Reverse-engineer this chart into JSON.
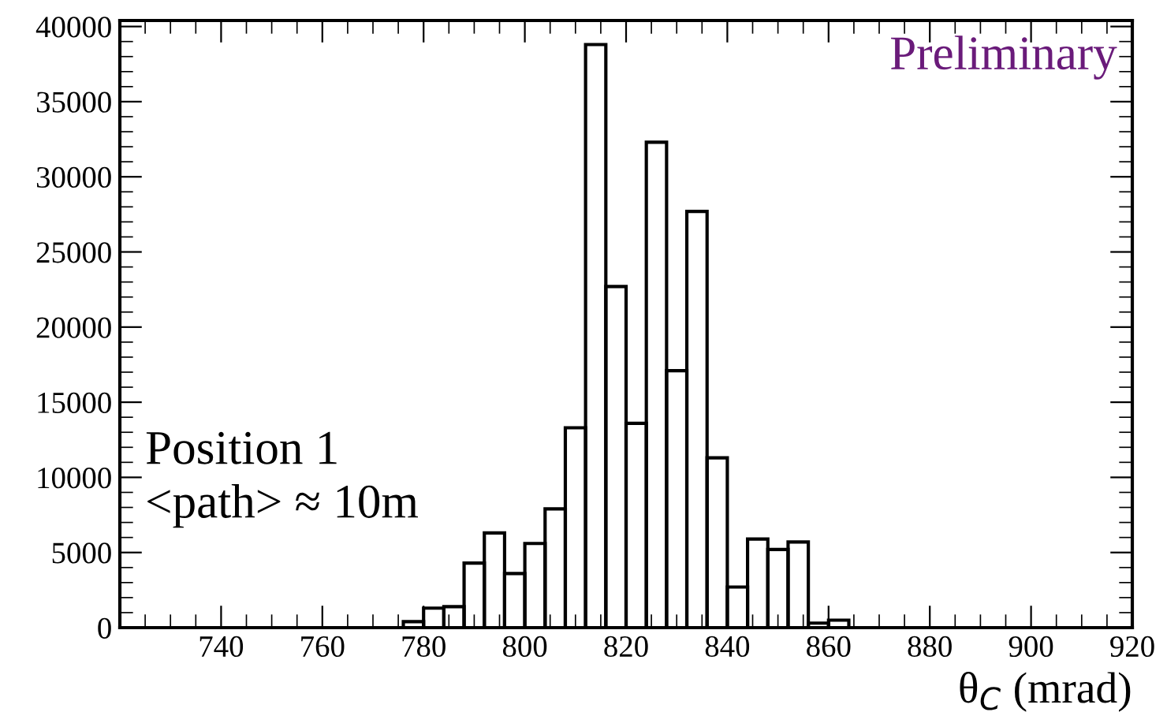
{
  "chart_data": {
    "type": "histogram",
    "bins": [
      776,
      780,
      784,
      788,
      792,
      796,
      800,
      804,
      808,
      812,
      816,
      820,
      824,
      828,
      832,
      836,
      840,
      844,
      848,
      852,
      856,
      860,
      864
    ],
    "values": [
      400,
      1300,
      1400,
      4300,
      6300,
      3600,
      5600,
      7900,
      13300,
      38800,
      22700,
      13600,
      32300,
      17100,
      27700,
      11300,
      2700,
      5900,
      5200,
      5700,
      300,
      500
    ],
    "color": "#000000",
    "xlabel": "θ$_{C}$ (mrad)",
    "xlim": [
      720,
      920
    ],
    "xticks": [
      740,
      760,
      780,
      800,
      820,
      840,
      860,
      880,
      900,
      920
    ],
    "ylim": [
      0,
      40400
    ],
    "yticks": [
      0,
      5000,
      10000,
      15000,
      20000,
      25000,
      30000,
      35000,
      40000
    ],
    "annotations": [
      "Preliminary",
      "Position 1\n<path> ≈ 10m"
    ],
    "grid": false
  }
}
